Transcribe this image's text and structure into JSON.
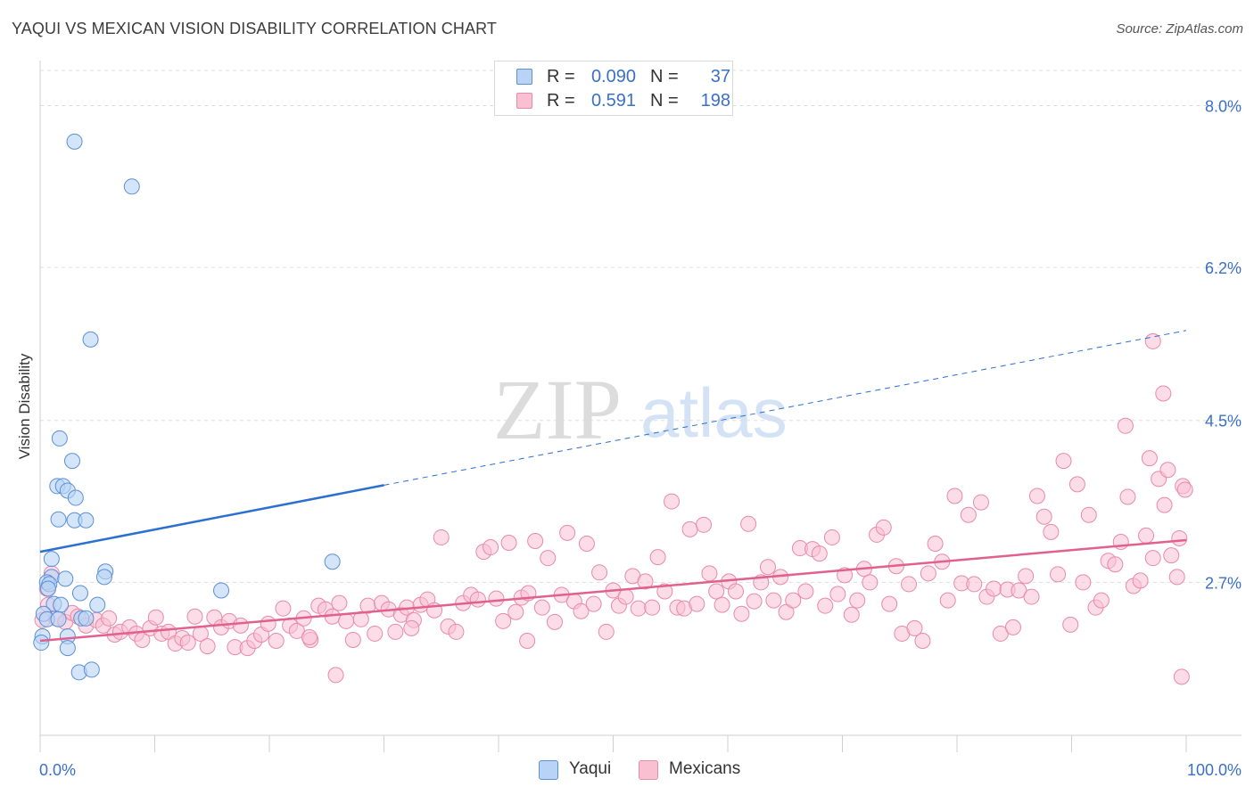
{
  "title": "YAQUI VS MEXICAN VISION DISABILITY CORRELATION CHART",
  "source": "Source: ZipAtlas.com",
  "watermark": {
    "zip": "ZIP",
    "atlas": "atlas"
  },
  "legend": {
    "yaqui": {
      "r_label": "R =",
      "r_value": "0.090",
      "n_label": "N =",
      "n_value": "37"
    },
    "mexicans": {
      "r_label": "R =",
      "r_value": "0.591",
      "n_label": "N =",
      "n_value": "198"
    }
  },
  "bottom_legend": {
    "yaqui": "Yaqui",
    "mexicans": "Mexicans"
  },
  "colors": {
    "yaqui_fill": "#b8d3f5",
    "yaqui_stroke": "#5b8fd6",
    "yaqui_line": "#2b6fd0",
    "mex_fill": "#f9c0d2",
    "mex_stroke": "#e88aa8",
    "mex_line": "#e0608e",
    "value_text": "#3a70c7",
    "grid": "#dddddd"
  },
  "chart_data": {
    "type": "scatter",
    "title": "YAQUI VS MEXICAN VISION DISABILITY CORRELATION CHART",
    "xlabel": "",
    "ylabel": "Vision Disability",
    "xlim": [
      0,
      100
    ],
    "ylim": [
      1.0,
      8.5
    ],
    "x_tick_labels": [
      "0.0%",
      "100.0%"
    ],
    "y_ticks": [
      2.7,
      4.5,
      6.2,
      8.0
    ],
    "y_tick_labels": [
      "2.7%",
      "4.5%",
      "6.2%",
      "8.0%"
    ],
    "grid": "horizontal dashed",
    "legend_position": "top-center",
    "series": [
      {
        "name": "Yaqui",
        "r": 0.09,
        "n": 37,
        "trend": {
          "x0": 0,
          "y0": 3.04,
          "x1": 30,
          "y1": 3.78,
          "dashed_to": [
            100,
            5.5
          ]
        },
        "points": [
          [
            3.0,
            7.6
          ],
          [
            8.0,
            7.1
          ],
          [
            4.4,
            5.4
          ],
          [
            1.7,
            4.3
          ],
          [
            2.8,
            4.05
          ],
          [
            1.5,
            3.77
          ],
          [
            2.0,
            3.77
          ],
          [
            2.4,
            3.72
          ],
          [
            3.1,
            3.64
          ],
          [
            1.6,
            3.4
          ],
          [
            3.0,
            3.39
          ],
          [
            4.0,
            3.39
          ],
          [
            1.0,
            2.96
          ],
          [
            25.5,
            2.93
          ],
          [
            1.0,
            2.76
          ],
          [
            5.7,
            2.82
          ],
          [
            5.6,
            2.76
          ],
          [
            0.6,
            2.7
          ],
          [
            0.8,
            2.68
          ],
          [
            0.7,
            2.63
          ],
          [
            2.2,
            2.74
          ],
          [
            3.5,
            2.58
          ],
          [
            15.8,
            2.61
          ],
          [
            1.2,
            2.46
          ],
          [
            1.8,
            2.45
          ],
          [
            5.0,
            2.45
          ],
          [
            0.3,
            2.35
          ],
          [
            0.6,
            2.29
          ],
          [
            1.6,
            2.29
          ],
          [
            3.6,
            2.3
          ],
          [
            4.0,
            2.3
          ],
          [
            2.4,
            2.1
          ],
          [
            0.2,
            2.1
          ],
          [
            2.4,
            1.97
          ],
          [
            3.4,
            1.7
          ],
          [
            4.5,
            1.73
          ],
          [
            0.1,
            2.03
          ]
        ]
      },
      {
        "name": "Mexicans",
        "r": 0.591,
        "n": 198,
        "trend": {
          "x0": 0,
          "y0": 2.05,
          "x1": 100,
          "y1": 3.17
        },
        "points": [
          [
            1.0,
            2.8
          ],
          [
            0.6,
            2.63
          ],
          [
            0.2,
            2.28
          ],
          [
            0.7,
            2.45
          ],
          [
            1.4,
            2.3
          ],
          [
            2.2,
            2.26
          ],
          [
            2.8,
            2.36
          ],
          [
            3.3,
            2.32
          ],
          [
            4.0,
            2.22
          ],
          [
            4.9,
            2.28
          ],
          [
            5.5,
            2.22
          ],
          [
            6.0,
            2.3
          ],
          [
            6.5,
            2.12
          ],
          [
            7.0,
            2.15
          ],
          [
            7.8,
            2.2
          ],
          [
            8.4,
            2.13
          ],
          [
            8.9,
            2.06
          ],
          [
            9.6,
            2.19
          ],
          [
            10.1,
            2.31
          ],
          [
            10.6,
            2.13
          ],
          [
            11.2,
            2.15
          ],
          [
            11.8,
            2.02
          ],
          [
            12.4,
            2.08
          ],
          [
            12.9,
            2.03
          ],
          [
            13.5,
            2.32
          ],
          [
            14.0,
            2.13
          ],
          [
            14.6,
            1.99
          ],
          [
            15.2,
            2.31
          ],
          [
            15.8,
            2.2
          ],
          [
            16.5,
            2.27
          ],
          [
            17.0,
            1.98
          ],
          [
            17.5,
            2.22
          ],
          [
            18.1,
            1.97
          ],
          [
            18.7,
            2.05
          ],
          [
            19.3,
            2.12
          ],
          [
            19.9,
            2.24
          ],
          [
            20.6,
            2.05
          ],
          [
            21.2,
            2.41
          ],
          [
            21.8,
            2.22
          ],
          [
            22.4,
            2.16
          ],
          [
            23.0,
            2.3
          ],
          [
            23.6,
            2.06
          ],
          [
            24.3,
            2.44
          ],
          [
            24.9,
            2.4
          ],
          [
            25.5,
            2.32
          ],
          [
            26.1,
            2.47
          ],
          [
            26.7,
            2.27
          ],
          [
            27.3,
            2.06
          ],
          [
            28.0,
            2.29
          ],
          [
            28.6,
            2.44
          ],
          [
            29.2,
            2.13
          ],
          [
            29.8,
            2.47
          ],
          [
            30.4,
            2.4
          ],
          [
            31.0,
            2.15
          ],
          [
            31.5,
            2.34
          ],
          [
            32.0,
            2.42
          ],
          [
            32.6,
            2.28
          ],
          [
            33.2,
            2.45
          ],
          [
            33.8,
            2.51
          ],
          [
            34.4,
            2.39
          ],
          [
            35.0,
            3.2
          ],
          [
            35.6,
            2.21
          ],
          [
            36.3,
            2.15
          ],
          [
            36.9,
            2.47
          ],
          [
            37.6,
            2.56
          ],
          [
            38.2,
            2.51
          ],
          [
            38.7,
            3.04
          ],
          [
            39.3,
            3.09
          ],
          [
            39.8,
            2.52
          ],
          [
            40.4,
            2.27
          ],
          [
            40.9,
            3.14
          ],
          [
            41.5,
            2.37
          ],
          [
            42.0,
            2.53
          ],
          [
            42.6,
            2.58
          ],
          [
            43.2,
            3.16
          ],
          [
            43.8,
            2.42
          ],
          [
            44.3,
            2.97
          ],
          [
            44.9,
            2.26
          ],
          [
            45.5,
            2.56
          ],
          [
            46.0,
            3.25
          ],
          [
            46.6,
            2.49
          ],
          [
            47.2,
            2.38
          ],
          [
            47.7,
            3.13
          ],
          [
            48.3,
            2.46
          ],
          [
            48.8,
            2.81
          ],
          [
            49.4,
            2.15
          ],
          [
            50.0,
            2.61
          ],
          [
            50.5,
            2.44
          ],
          [
            51.1,
            2.54
          ],
          [
            51.7,
            2.77
          ],
          [
            52.2,
            2.41
          ],
          [
            52.8,
            2.71
          ],
          [
            53.4,
            2.42
          ],
          [
            53.9,
            2.98
          ],
          [
            54.5,
            2.6
          ],
          [
            55.1,
            3.6
          ],
          [
            55.6,
            2.42
          ],
          [
            56.2,
            2.41
          ],
          [
            56.7,
            3.29
          ],
          [
            57.3,
            2.46
          ],
          [
            57.9,
            3.34
          ],
          [
            58.4,
            2.8
          ],
          [
            59.0,
            2.6
          ],
          [
            59.5,
            2.45
          ],
          [
            60.1,
            2.71
          ],
          [
            60.7,
            2.6
          ],
          [
            61.2,
            2.35
          ],
          [
            61.8,
            3.35
          ],
          [
            62.3,
            2.49
          ],
          [
            62.9,
            2.7
          ],
          [
            63.5,
            2.87
          ],
          [
            64.0,
            2.5
          ],
          [
            64.6,
            2.76
          ],
          [
            65.1,
            2.37
          ],
          [
            65.7,
            2.5
          ],
          [
            66.3,
            3.08
          ],
          [
            66.8,
            2.6
          ],
          [
            67.4,
            3.07
          ],
          [
            68.0,
            3.02
          ],
          [
            68.5,
            2.44
          ],
          [
            69.1,
            3.2
          ],
          [
            69.6,
            2.57
          ],
          [
            70.2,
            2.78
          ],
          [
            70.8,
            2.34
          ],
          [
            71.3,
            2.5
          ],
          [
            71.9,
            2.85
          ],
          [
            72.4,
            2.7
          ],
          [
            73.0,
            3.23
          ],
          [
            73.6,
            3.31
          ],
          [
            74.1,
            2.46
          ],
          [
            74.7,
            2.88
          ],
          [
            75.2,
            2.13
          ],
          [
            75.8,
            2.68
          ],
          [
            76.3,
            2.19
          ],
          [
            77.0,
            2.05
          ],
          [
            77.5,
            2.8
          ],
          [
            78.1,
            3.13
          ],
          [
            78.7,
            2.93
          ],
          [
            79.2,
            2.5
          ],
          [
            79.8,
            3.66
          ],
          [
            80.4,
            2.69
          ],
          [
            81.0,
            3.45
          ],
          [
            81.5,
            2.68
          ],
          [
            82.1,
            3.59
          ],
          [
            82.6,
            2.54
          ],
          [
            83.2,
            2.63
          ],
          [
            83.8,
            2.13
          ],
          [
            84.4,
            2.62
          ],
          [
            84.9,
            2.2
          ],
          [
            85.4,
            2.61
          ],
          [
            86.0,
            2.77
          ],
          [
            86.5,
            2.54
          ],
          [
            87.0,
            3.66
          ],
          [
            87.6,
            3.43
          ],
          [
            88.2,
            3.26
          ],
          [
            88.8,
            2.79
          ],
          [
            89.3,
            4.05
          ],
          [
            89.9,
            2.23
          ],
          [
            90.5,
            3.79
          ],
          [
            91.0,
            2.7
          ],
          [
            91.5,
            3.45
          ],
          [
            92.1,
            2.42
          ],
          [
            92.6,
            2.5
          ],
          [
            93.2,
            2.94
          ],
          [
            93.8,
            2.9
          ],
          [
            94.3,
            3.15
          ],
          [
            94.9,
            3.65
          ],
          [
            95.4,
            2.66
          ],
          [
            96.0,
            2.72
          ],
          [
            96.5,
            3.22
          ],
          [
            97.1,
            2.97
          ],
          [
            97.6,
            3.85
          ],
          [
            98.1,
            3.56
          ],
          [
            98.7,
            3.0
          ],
          [
            99.2,
            2.76
          ],
          [
            99.7,
            3.77
          ],
          [
            99.9,
            3.73
          ],
          [
            94.7,
            4.44
          ],
          [
            96.8,
            4.08
          ],
          [
            98.4,
            3.95
          ],
          [
            98.0,
            4.8
          ],
          [
            97.1,
            5.38
          ],
          [
            99.4,
            3.19
          ],
          [
            99.6,
            1.65
          ],
          [
            25.8,
            1.67
          ],
          [
            23.5,
            2.09
          ],
          [
            32.4,
            2.19
          ],
          [
            42.5,
            2.05
          ]
        ]
      }
    ]
  }
}
